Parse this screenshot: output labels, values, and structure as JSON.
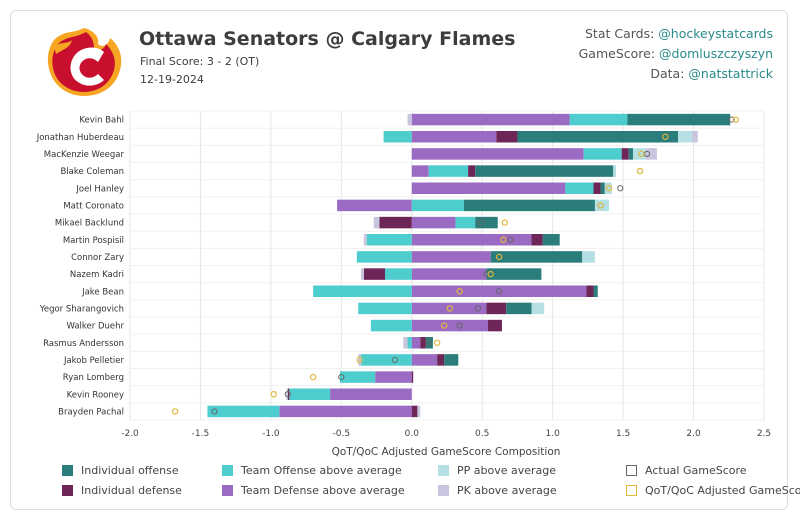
{
  "header": {
    "title": "Ottawa Senators @ Calgary Flames",
    "final_score": "Final Score: 3 - 2 (OT)",
    "date": "12-19-2024",
    "credits": [
      {
        "label": "Stat Cards: ",
        "handle": "@hockeystatcards"
      },
      {
        "label": "GameScore: ",
        "handle": "@domluszczyszyn"
      },
      {
        "label": "Data: ",
        "handle": "@natstattrick"
      }
    ]
  },
  "colors": {
    "individual_offense": "#2a7d7b",
    "individual_defense": "#6e2659",
    "team_offense": "#4ecdcf",
    "team_defense": "#9b6bc4",
    "pp": "#b5e0e3",
    "pk": "#c8c5df",
    "actual_marker": "#666666",
    "adjusted_marker": "#e2b93b",
    "grid": "#e6e6e6"
  },
  "chart_data": {
    "type": "bar",
    "stacked": true,
    "orientation": "horizontal",
    "xlabel": "QoT/QoC Adjusted GameScore Composition",
    "xlim": [
      -2.0,
      2.5
    ],
    "xticks": [
      "-2.0",
      "-1.5",
      "-1.0",
      "-0.5",
      "0.0",
      "0.5",
      "1.0",
      "1.5",
      "2.0",
      "2.5"
    ],
    "grid": true,
    "series_names": [
      "Individual offense",
      "Individual defense",
      "Team Offense above average",
      "Team Defense above average",
      "PP above average",
      "PK above average",
      "Actual GameScore",
      "QoT/QoC Adjusted GameScore"
    ],
    "players": [
      {
        "name": "Kevin Bahl",
        "ind_off": 0.73,
        "ind_def": 0.0,
        "team_off": 0.41,
        "team_def": 1.12,
        "pp": 0.0,
        "pk": -0.03,
        "actual": 2.27,
        "adjusted": 2.3
      },
      {
        "name": "Jonathan Huberdeau",
        "ind_off": 1.14,
        "ind_def": 0.15,
        "team_off": -0.2,
        "team_def": 0.6,
        "pp": 0.1,
        "pk": 0.04,
        "actual": 1.8,
        "adjusted": 1.8
      },
      {
        "name": "MacKenzie Weegar",
        "ind_off": 0.03,
        "ind_def": 0.05,
        "team_off": 0.27,
        "team_def": 1.22,
        "pp": 0.09,
        "pk": 0.08,
        "actual": 1.67,
        "adjusted": 1.63
      },
      {
        "name": "Blake Coleman",
        "ind_off": 0.98,
        "ind_def": 0.05,
        "team_off": 0.28,
        "team_def": 0.12,
        "pp": 0.02,
        "pk": 0.0,
        "actual": 1.62,
        "adjusted": 1.62
      },
      {
        "name": "Joel Hanley",
        "ind_off": 0.03,
        "ind_def": 0.05,
        "team_off": 0.2,
        "team_def": 1.09,
        "pp": 0.05,
        "pk": 0.0,
        "actual": 1.48,
        "adjusted": 1.4
      },
      {
        "name": "Matt Coronato",
        "ind_off": 0.93,
        "ind_def": 0.0,
        "team_off": 0.37,
        "team_def": -0.53,
        "pp": 0.1,
        "pk": 0.0,
        "actual": 1.34,
        "adjusted": 1.34
      },
      {
        "name": "Mikael Backlund",
        "ind_off": 0.16,
        "ind_def": -0.23,
        "team_off": 0.14,
        "team_def": 0.31,
        "pp": 0.0,
        "pk": -0.04,
        "actual": 0.49,
        "adjusted": 0.66
      },
      {
        "name": "Martin Pospisil",
        "ind_off": 0.12,
        "ind_def": 0.08,
        "team_off": -0.32,
        "team_def": 0.85,
        "pp": 0.0,
        "pk": -0.02,
        "actual": 0.7,
        "adjusted": 0.65
      },
      {
        "name": "Connor Zary",
        "ind_off": 0.65,
        "ind_def": 0.0,
        "team_off": -0.39,
        "team_def": 0.56,
        "pp": 0.09,
        "pk": 0.0,
        "actual": 0.62,
        "adjusted": 0.62
      },
      {
        "name": "Nazem Kadri",
        "ind_off": 0.39,
        "ind_def": -0.15,
        "team_off": -0.19,
        "team_def": 0.53,
        "pp": 0.0,
        "pk": -0.02,
        "actual": 0.53,
        "adjusted": 0.56
      },
      {
        "name": "Jake Bean",
        "ind_off": 0.03,
        "ind_def": 0.05,
        "team_off": -0.7,
        "team_def": 1.24,
        "pp": 0.0,
        "pk": 0.0,
        "actual": 0.62,
        "adjusted": 0.34
      },
      {
        "name": "Yegor Sharangovich",
        "ind_off": 0.18,
        "ind_def": 0.14,
        "team_off": -0.38,
        "team_def": 0.53,
        "pp": 0.09,
        "pk": 0.0,
        "actual": 0.47,
        "adjusted": 0.27
      },
      {
        "name": "Walker Duehr",
        "ind_off": 0.0,
        "ind_def": 0.1,
        "team_off": -0.29,
        "team_def": 0.54,
        "pp": 0.0,
        "pk": 0.0,
        "actual": 0.34,
        "adjusted": 0.23
      },
      {
        "name": "Rasmus Andersson",
        "ind_off": 0.05,
        "ind_def": 0.04,
        "team_off": -0.03,
        "team_def": 0.06,
        "pp": 0.0,
        "pk": -0.03,
        "actual": 0.12,
        "adjusted": 0.18
      },
      {
        "name": "Jakob Pelletier",
        "ind_off": 0.1,
        "ind_def": 0.05,
        "team_off": -0.36,
        "team_def": 0.18,
        "pp": 0.0,
        "pk": -0.02,
        "actual": -0.12,
        "adjusted": -0.37
      },
      {
        "name": "Ryan Lomberg",
        "ind_off": 0.0,
        "ind_def": 0.01,
        "team_off": -0.25,
        "team_def": -0.26,
        "pp": 0.0,
        "pk": 0.0,
        "actual": -0.5,
        "adjusted": -0.7
      },
      {
        "name": "Kevin Rooney",
        "ind_off": 0.0,
        "ind_def": -0.01,
        "team_off": -0.29,
        "team_def": -0.58,
        "pp": 0.0,
        "pk": -0.01,
        "actual": -0.88,
        "adjusted": -0.98
      },
      {
        "name": "Brayden Pachal",
        "ind_off": 0.0,
        "ind_def": 0.04,
        "team_off": -0.51,
        "team_def": -0.94,
        "pp": 0.0,
        "pk": 0.02,
        "actual": -1.4,
        "adjusted": -1.68
      }
    ]
  },
  "legend": [
    {
      "key": "individual_offense",
      "label": "Individual offense",
      "style": "fill"
    },
    {
      "key": "team_offense",
      "label": "Team Offense above average",
      "style": "fill"
    },
    {
      "key": "pp",
      "label": "PP above average",
      "style": "fill"
    },
    {
      "key": "actual_marker",
      "label": "Actual GameScore",
      "style": "outline"
    },
    {
      "key": "individual_defense",
      "label": "Individual defense",
      "style": "fill"
    },
    {
      "key": "team_defense",
      "label": "Team Defense above average",
      "style": "fill"
    },
    {
      "key": "pk",
      "label": "PK above average",
      "style": "fill"
    },
    {
      "key": "adjusted_marker",
      "label": "QoT/QoC Adjusted GameScore",
      "style": "outline"
    }
  ]
}
